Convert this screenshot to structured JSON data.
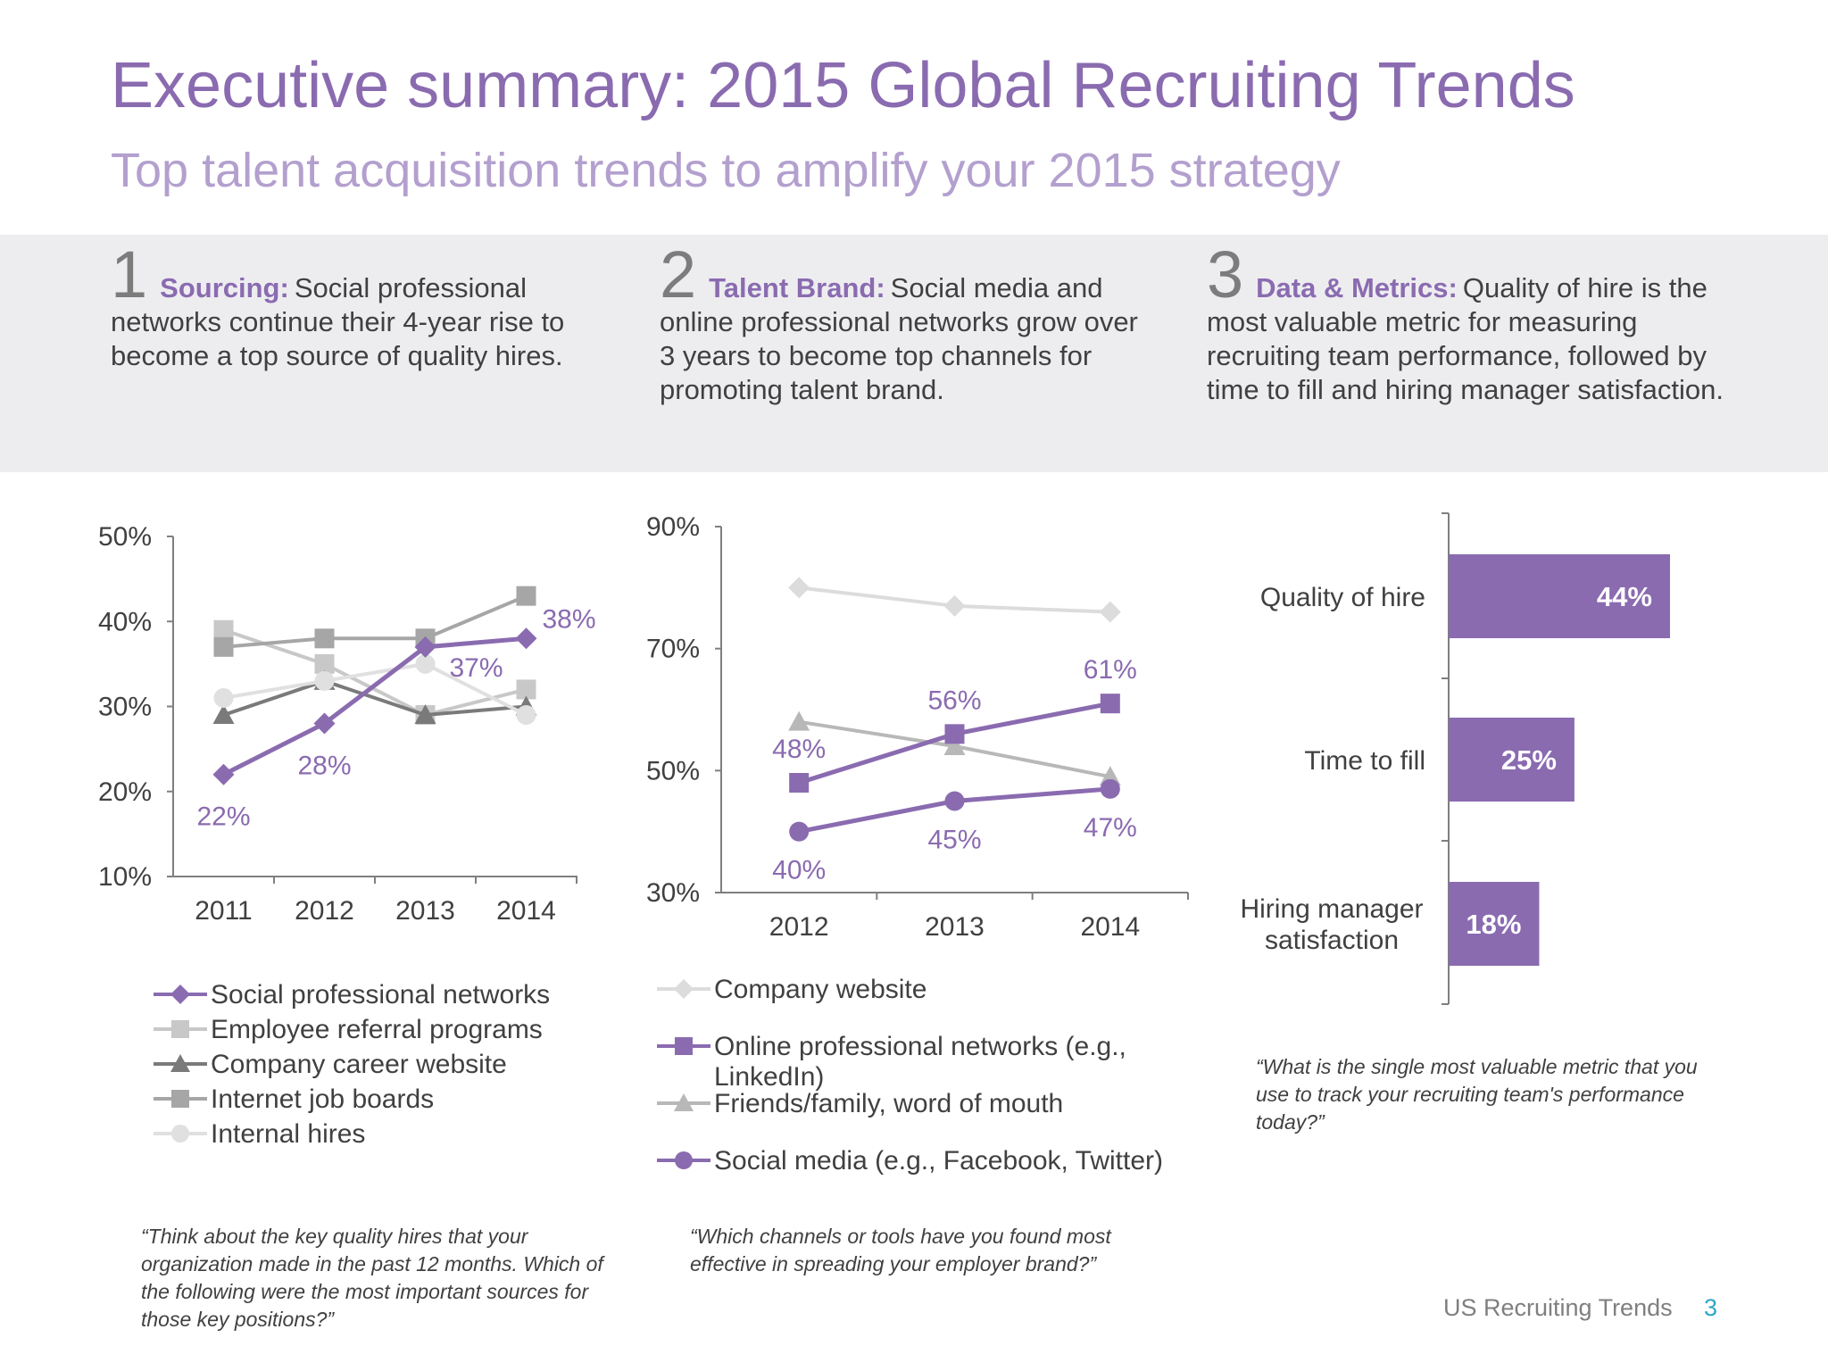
{
  "page": {
    "title": "Executive summary: 2015 Global Recruiting Trends",
    "subtitle": "Top talent acquisition trends to amplify your 2015 strategy",
    "footer": "US Recruiting Trends",
    "page_number": "3"
  },
  "trends": [
    {
      "number": "1",
      "heading": "Sourcing:",
      "text": "Social professional networks continue their 4-year rise to become a top source of quality hires."
    },
    {
      "number": "2",
      "heading": "Talent Brand:",
      "text": "Social media and online professional networks grow over 3 years to become top channels for promoting talent brand."
    },
    {
      "number": "3",
      "heading": "Data & Metrics:",
      "text": "Quality of hire is the most valuable metric for measuring recruiting team performance, followed by time to fill and hiring manager satisfaction."
    }
  ],
  "questions": [
    "“Think about the key quality hires that your organization made in the past 12 months. Which of the following were the most important sources for those key positions?”",
    "“Which channels or tools have you found most effective in spreading your employer brand?”",
    "“What is the single most valuable metric that you use to track your recruiting team's performance today?”"
  ],
  "chart_data": [
    {
      "type": "line",
      "x": [
        "2011",
        "2012",
        "2013",
        "2014"
      ],
      "ylim": [
        10,
        50
      ],
      "yticks": [
        "10%",
        "20%",
        "30%",
        "40%",
        "50%"
      ],
      "series": [
        {
          "name": "Social professional networks",
          "values": [
            22,
            28,
            37,
            38
          ],
          "labels": [
            "22%",
            "28%",
            "37%",
            "38%"
          ],
          "color": "#8a6bb0",
          "marker": "diamond"
        },
        {
          "name": "Employee referral programs",
          "values": [
            39,
            35,
            29,
            32
          ],
          "color": "#c8c8c8",
          "marker": "square"
        },
        {
          "name": "Company career website",
          "values": [
            29,
            33,
            29,
            30
          ],
          "color": "#7a7a7a",
          "marker": "triangle"
        },
        {
          "name": "Internet job boards",
          "values": [
            37,
            38,
            38,
            43
          ],
          "color": "#a6a6a6",
          "marker": "square"
        },
        {
          "name": "Internal hires",
          "values": [
            31,
            33,
            35,
            29
          ],
          "color": "#e0e0e0",
          "marker": "circle"
        }
      ]
    },
    {
      "type": "line",
      "x": [
        "2012",
        "2013",
        "2014"
      ],
      "ylim": [
        30,
        90
      ],
      "yticks": [
        "30%",
        "50%",
        "70%",
        "90%"
      ],
      "series": [
        {
          "name": "Company website",
          "values": [
            80,
            77,
            76
          ],
          "color": "#dcdcdc",
          "marker": "diamond"
        },
        {
          "name": "Online professional networks (e.g., LinkedIn)",
          "values": [
            48,
            56,
            61
          ],
          "labels": [
            "48%",
            "56%",
            "61%"
          ],
          "color": "#8a6bb0",
          "marker": "square"
        },
        {
          "name": "Friends/family, word of mouth",
          "values": [
            58,
            54,
            49
          ],
          "color": "#b8b8b8",
          "marker": "triangle"
        },
        {
          "name": "Social media (e.g., Facebook, Twitter)",
          "values": [
            40,
            45,
            47
          ],
          "labels": [
            "40%",
            "45%",
            "47%"
          ],
          "color": "#8a6bb0",
          "marker": "circle"
        }
      ]
    },
    {
      "type": "bar",
      "orientation": "horizontal",
      "categories": [
        "Quality of hire",
        "Time to fill",
        "Hiring manager satisfaction"
      ],
      "values": [
        44,
        25,
        18
      ],
      "labels": [
        "44%",
        "25%",
        "18%"
      ],
      "color": "#8a6bb0"
    }
  ]
}
